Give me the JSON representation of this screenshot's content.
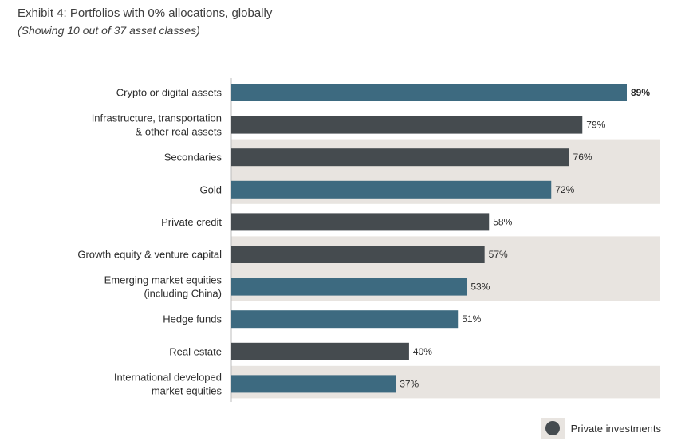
{
  "chart_data": {
    "type": "bar",
    "orientation": "horizontal",
    "title": "Exhibit 4: Portfolios with 0% allocations, globally",
    "subtitle": "(Showing 10 out of 37 asset classes)",
    "xlim": [
      0,
      100
    ],
    "grid": false,
    "items": [
      {
        "label_lines": [
          "Crypto or digital assets"
        ],
        "value": 89,
        "value_label": "89%",
        "private": false,
        "bold": true
      },
      {
        "label_lines": [
          "Infrastructure, transportation",
          "& other real assets"
        ],
        "value": 79,
        "value_label": "79%",
        "private": true,
        "bold": false
      },
      {
        "label_lines": [
          "Secondaries"
        ],
        "value": 76,
        "value_label": "76%",
        "private": true,
        "bold": false
      },
      {
        "label_lines": [
          "Gold"
        ],
        "value": 72,
        "value_label": "72%",
        "private": false,
        "bold": false
      },
      {
        "label_lines": [
          "Private credit"
        ],
        "value": 58,
        "value_label": "58%",
        "private": true,
        "bold": false
      },
      {
        "label_lines": [
          "Growth equity & venture capital"
        ],
        "value": 57,
        "value_label": "57%",
        "private": true,
        "bold": false
      },
      {
        "label_lines": [
          "Emerging market equities",
          "(including China)"
        ],
        "value": 53,
        "value_label": "53%",
        "private": false,
        "bold": false
      },
      {
        "label_lines": [
          "Hedge funds"
        ],
        "value": 51,
        "value_label": "51%",
        "private": false,
        "bold": false
      },
      {
        "label_lines": [
          "Real estate"
        ],
        "value": 40,
        "value_label": "40%",
        "private": true,
        "bold": false
      },
      {
        "label_lines": [
          "International developed",
          "market equities"
        ],
        "value": 37,
        "value_label": "37%",
        "private": false,
        "bold": false
      }
    ],
    "legend": {
      "label": "Private investments",
      "position": "bottom-right"
    }
  },
  "colors": {
    "public_bar": "#3d6a80",
    "private_bar": "#454b4f",
    "band": "#e8e4e0",
    "axis": "#bdbdbd"
  }
}
